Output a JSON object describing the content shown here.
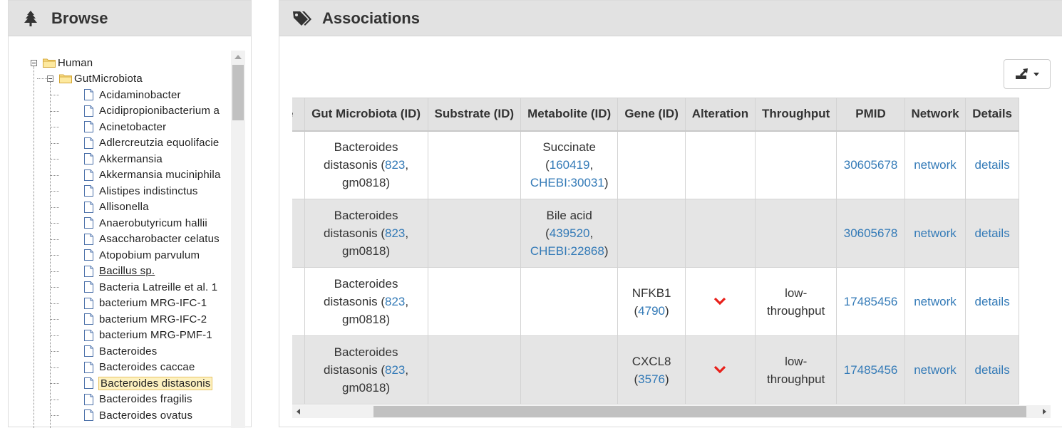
{
  "browse": {
    "title": "Browse",
    "title_icon": "tree-icon",
    "root": {
      "label": "Human",
      "icon": "folder-open-icon"
    },
    "group": {
      "label": "GutMicrobiota",
      "icon": "folder-open-icon"
    },
    "leaves": [
      {
        "label": "Acidaminobacter"
      },
      {
        "label": "Acidipropionibacterium a"
      },
      {
        "label": "Acinetobacter"
      },
      {
        "label": "Adlercreutzia equolifacie"
      },
      {
        "label": "Akkermansia"
      },
      {
        "label": "Akkermansia muciniphila"
      },
      {
        "label": "Alistipes indistinctus"
      },
      {
        "label": "Allisonella"
      },
      {
        "label": "Anaerobutyricum hallii"
      },
      {
        "label": "Asaccharobacter celatus"
      },
      {
        "label": "Atopobium parvulum"
      },
      {
        "label": "Bacillus sp."
      },
      {
        "label": "Bacteria Latreille et al. 1"
      },
      {
        "label": "bacterium MRG-IFC-1"
      },
      {
        "label": "bacterium MRG-IFC-2"
      },
      {
        "label": "bacterium MRG-PMF-1"
      },
      {
        "label": "Bacteroides"
      },
      {
        "label": "Bacteroides caccae"
      },
      {
        "label": "Bacteroides distasonis"
      },
      {
        "label": "Bacteroides fragilis"
      },
      {
        "label": "Bacteroides ovatus"
      }
    ],
    "selected_leaf": "Bacteroides distasonis",
    "underlined_leaf": "Bacillus sp."
  },
  "associations": {
    "title": "Associations",
    "title_icon": "tags-icon",
    "export_icon": "export-icon",
    "columns": [
      "use",
      "Gut Microbiota (ID)",
      "Substrate (ID)",
      "Metabolite (ID)",
      "Gene (ID)",
      "Alteration",
      "Throughput",
      "PMID",
      "Network",
      "Details"
    ],
    "rows": [
      {
        "microbe": {
          "name": "Bacteroides distasonis",
          "id1": "823",
          "id2": "gm0818"
        },
        "substrate": "",
        "metabolite": {
          "name": "Succinate",
          "id1": "160419",
          "id2": "CHEBI:30031"
        },
        "gene": null,
        "alteration": "",
        "throughput": "",
        "pmid": "30605678",
        "network": "network",
        "details": "details"
      },
      {
        "microbe": {
          "name": "Bacteroides distasonis",
          "id1": "823",
          "id2": "gm0818"
        },
        "substrate": "",
        "metabolite": {
          "name": "Bile acid",
          "id1": "439520",
          "id2": "CHEBI:22868"
        },
        "gene": null,
        "alteration": "",
        "throughput": "",
        "pmid": "30605678",
        "network": "network",
        "details": "details"
      },
      {
        "microbe": {
          "name": "Bacteroides distasonis",
          "id1": "823",
          "id2": "gm0818"
        },
        "substrate": "",
        "metabolite": null,
        "gene": {
          "name": "NFKB1",
          "id": "4790"
        },
        "alteration": "chevron-down-icon",
        "throughput": "low-throughput",
        "pmid": "17485456",
        "network": "network",
        "details": "details"
      },
      {
        "microbe": {
          "name": "Bacteroides distasonis",
          "id1": "823",
          "id2": "gm0818"
        },
        "substrate": "",
        "metabolite": null,
        "gene": {
          "name": "CXCL8",
          "id": "3576"
        },
        "alteration": "chevron-down-icon",
        "throughput": "low-throughput",
        "pmid": "17485456",
        "network": "network",
        "details": "details"
      }
    ],
    "alteration_color": "#e8201a",
    "link_color": "#337ab7"
  }
}
